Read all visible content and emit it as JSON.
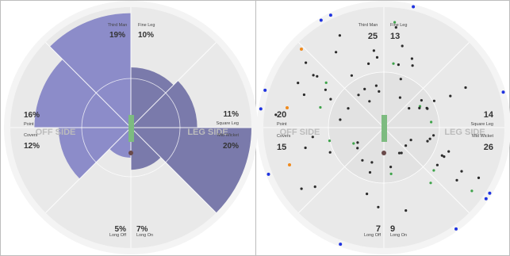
{
  "colors": {
    "ground_outer": "#e9e9e9",
    "ground_inner": "#dedede",
    "wedge_light": "#8787c7",
    "wedge_dark": "#7474a8",
    "pitch": "#7dbb80",
    "dot_dark": "#2b2b2b",
    "dot_green": "#3ea34a",
    "dot_blue": "#1f33e0",
    "dot_orange": "#f08a1c",
    "side_label": "#bcbcbc"
  },
  "side_labels": {
    "off": "OFF SIDE",
    "leg": "LEG SIDE"
  },
  "zones": [
    {
      "name": "Fine Leg"
    },
    {
      "name": "Square Leg"
    },
    {
      "name": "Mid Wicket"
    },
    {
      "name": "Long On"
    },
    {
      "name": "Long Off"
    },
    {
      "name": "Covers"
    },
    {
      "name": "Point"
    },
    {
      "name": "Third Man"
    }
  ],
  "wagon_wheel": {
    "percentages": [
      {
        "zone": "Fine Leg",
        "value": "10%",
        "pct": 10
      },
      {
        "zone": "Square Leg",
        "value": "11%",
        "pct": 11
      },
      {
        "zone": "Mid Wicket",
        "value": "20%",
        "pct": 20
      },
      {
        "zone": "Long On",
        "value": "7%",
        "pct": 7
      },
      {
        "zone": "Long Off",
        "value": "5%",
        "pct": 5
      },
      {
        "zone": "Covers",
        "value": "12%",
        "pct": 12
      },
      {
        "zone": "Point",
        "value": "16%",
        "pct": 16
      },
      {
        "zone": "Third Man",
        "value": "19%",
        "pct": 19
      }
    ]
  },
  "shot_map": {
    "counts": [
      {
        "zone": "Fine Leg",
        "value": "13"
      },
      {
        "zone": "Square Leg",
        "value": "14"
      },
      {
        "zone": "Mid Wicket",
        "value": "26"
      },
      {
        "zone": "Long On",
        "value": "9"
      },
      {
        "zone": "Long Off",
        "value": "7"
      },
      {
        "zone": "Covers",
        "value": "15"
      },
      {
        "zone": "Point",
        "value": "20"
      },
      {
        "zone": "Third Man",
        "value": "25"
      }
    ]
  }
}
